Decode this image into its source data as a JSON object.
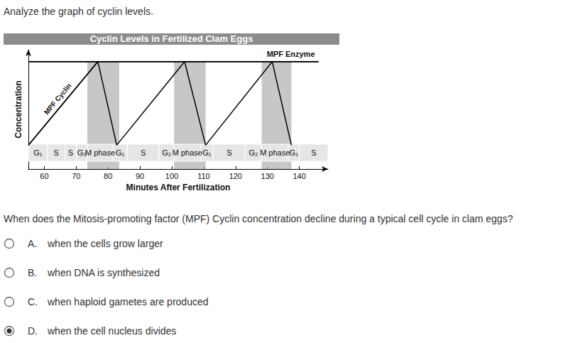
{
  "prompt": "Analyze the graph of cyclin levels.",
  "chart_data": {
    "type": "line",
    "title": "Cyclin Levels in Fertilized Clam Eggs",
    "x_label": "Minutes After Fertilization",
    "y_label": "Concentration",
    "xlim": [
      55,
      149
    ],
    "xticks": [
      60,
      70,
      80,
      90,
      100,
      110,
      120,
      130,
      140
    ],
    "ylim": [
      0,
      10
    ],
    "tick_labels": "x",
    "grid": false,
    "series": [
      {
        "name": "MPF Cyclin",
        "color": "#000000",
        "x": [
          55,
          76.8,
          82.7,
          104,
          110.6,
          131.5,
          137.5
        ],
        "values": [
          2,
          9,
          2,
          9,
          2,
          9,
          2
        ]
      },
      {
        "name": "MPF Enzyme",
        "color": "#000000",
        "x": [
          55,
          146
        ],
        "values": [
          9,
          9
        ]
      }
    ],
    "shaded_intervals": [
      [
        73.5,
        83.5
      ],
      [
        100.7,
        110.6
      ],
      [
        128.2,
        137.5
      ]
    ],
    "phases": [
      {
        "label": "G₁",
        "start": 55,
        "end": 61
      },
      {
        "label": "S",
        "start": 61,
        "end": 66.5
      },
      {
        "label": "S",
        "start": 66.5,
        "end": 70
      },
      {
        "label": "G₂",
        "start": 70,
        "end": 73.5
      },
      {
        "label": "M phase",
        "start": 73.5,
        "end": 81.5
      },
      {
        "label": "G₁",
        "start": 81.5,
        "end": 86
      },
      {
        "label": "S",
        "start": 86,
        "end": 96
      },
      {
        "label": "G₂",
        "start": 96,
        "end": 100.7
      },
      {
        "label": "M phase",
        "start": 100.7,
        "end": 109
      },
      {
        "label": "G₁",
        "start": 109,
        "end": 113
      },
      {
        "label": "S",
        "start": 113,
        "end": 123
      },
      {
        "label": "G₂",
        "start": 123,
        "end": 128.2
      },
      {
        "label": "M phase",
        "start": 128.2,
        "end": 136.5
      },
      {
        "label": "G₁",
        "start": 136.5,
        "end": 140
      },
      {
        "label": "S",
        "start": 140,
        "end": 149
      }
    ]
  },
  "question": "When does the Mitosis-promoting factor (MPF) Cyclin concentration decline during a typical cell cycle in clam eggs?",
  "options": [
    {
      "letter": "A.",
      "text": "when the cells grow larger",
      "selected": false
    },
    {
      "letter": "B.",
      "text": "when DNA is synthesized",
      "selected": false
    },
    {
      "letter": "C.",
      "text": "when haploid gametes are produced",
      "selected": false
    },
    {
      "letter": "D.",
      "text": "when the cell nucleus divides",
      "selected": true
    }
  ]
}
